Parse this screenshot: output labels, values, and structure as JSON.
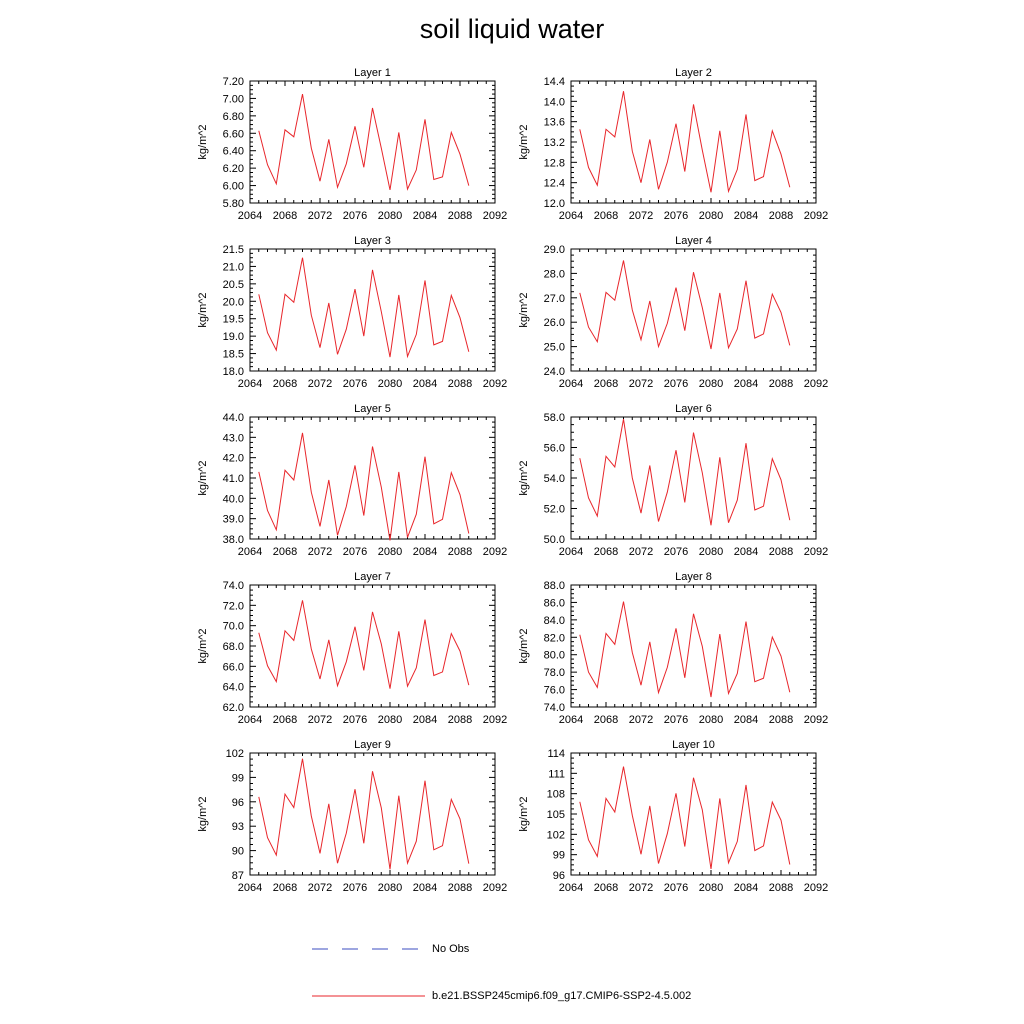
{
  "title": "soil liquid water",
  "legend": {
    "obs_label": "No Obs",
    "obs_color": "#3b4cc0",
    "model_label": "b.e21.BSSP245cmip6.f09_g17.CMIP6-SSP2-4.5.002",
    "model_color": "#e8262b"
  },
  "chart_data": [
    {
      "type": "line",
      "title": "Layer 1",
      "ylabel": "kg/m^2",
      "xlim": [
        2064,
        2092
      ],
      "x_ticks": [
        "2064",
        "2068",
        "2072",
        "2076",
        "2080",
        "2084",
        "2088",
        "2092"
      ],
      "ylim": [
        5.8,
        7.2
      ],
      "y_ticks": [
        "5.80",
        "6.00",
        "6.20",
        "6.40",
        "6.60",
        "6.80",
        "7.00",
        "7.20"
      ],
      "series": [
        {
          "color": "#e8262b",
          "x": [
            2065,
            2066,
            2067,
            2068,
            2069,
            2070,
            2071,
            2072,
            2073,
            2074,
            2075,
            2076,
            2077,
            2078,
            2079,
            2080,
            2081,
            2082,
            2083,
            2084,
            2085,
            2086,
            2087,
            2088,
            2089
          ],
          "y": [
            6.63,
            6.24,
            6.02,
            6.64,
            6.56,
            7.05,
            6.43,
            6.05,
            6.53,
            5.98,
            6.25,
            6.68,
            6.21,
            6.89,
            6.43,
            5.95,
            6.61,
            5.96,
            6.18,
            6.76,
            6.07,
            6.1,
            6.61,
            6.36,
            6.0
          ]
        }
      ]
    },
    {
      "type": "line",
      "title": "Layer 2",
      "ylabel": "kg/m^2",
      "xlim": [
        2064,
        2092
      ],
      "x_ticks": [
        "2064",
        "2068",
        "2072",
        "2076",
        "2080",
        "2084",
        "2088",
        "2092"
      ],
      "ylim": [
        12.0,
        14.4
      ],
      "y_ticks": [
        "12.0",
        "12.4",
        "12.8",
        "13.2",
        "13.6",
        "14.0",
        "14.4"
      ],
      "series": [
        {
          "color": "#e8262b",
          "x": [
            2065,
            2066,
            2067,
            2068,
            2069,
            2070,
            2071,
            2072,
            2073,
            2074,
            2075,
            2076,
            2077,
            2078,
            2079,
            2080,
            2081,
            2082,
            2083,
            2084,
            2085,
            2086,
            2087,
            2088,
            2089
          ],
          "y": [
            13.45,
            12.7,
            12.35,
            13.45,
            13.3,
            14.2,
            13.02,
            12.4,
            13.25,
            12.27,
            12.8,
            13.56,
            12.62,
            13.94,
            13.04,
            12.21,
            13.42,
            12.23,
            12.66,
            13.74,
            12.44,
            12.52,
            13.42,
            12.96,
            12.31
          ]
        }
      ]
    },
    {
      "type": "line",
      "title": "Layer 3",
      "ylabel": "kg/m^2",
      "xlim": [
        2064,
        2092
      ],
      "x_ticks": [
        "2064",
        "2068",
        "2072",
        "2076",
        "2080",
        "2084",
        "2088",
        "2092"
      ],
      "ylim": [
        18.0,
        21.5
      ],
      "y_ticks": [
        "18.0",
        "18.5",
        "19.0",
        "19.5",
        "20.0",
        "20.5",
        "21.0",
        "21.5"
      ],
      "series": [
        {
          "color": "#e8262b",
          "x": [
            2065,
            2066,
            2067,
            2068,
            2069,
            2070,
            2071,
            2072,
            2073,
            2074,
            2075,
            2076,
            2077,
            2078,
            2079,
            2080,
            2081,
            2082,
            2083,
            2084,
            2085,
            2086,
            2087,
            2088,
            2089
          ],
          "y": [
            20.2,
            19.1,
            18.6,
            20.2,
            19.97,
            21.25,
            19.6,
            18.67,
            19.95,
            18.48,
            19.2,
            20.35,
            19.0,
            20.9,
            19.7,
            18.4,
            20.18,
            18.42,
            19.05,
            20.6,
            18.75,
            18.85,
            20.17,
            19.53,
            18.55
          ]
        }
      ]
    },
    {
      "type": "line",
      "title": "Layer 4",
      "ylabel": "kg/m^2",
      "xlim": [
        2064,
        2092
      ],
      "x_ticks": [
        "2064",
        "2068",
        "2072",
        "2076",
        "2080",
        "2084",
        "2088",
        "2092"
      ],
      "ylim": [
        24.0,
        29.0
      ],
      "y_ticks": [
        "24.0",
        "25.0",
        "26.0",
        "27.0",
        "28.0",
        "29.0"
      ],
      "series": [
        {
          "color": "#e8262b",
          "x": [
            2065,
            2066,
            2067,
            2068,
            2069,
            2070,
            2071,
            2072,
            2073,
            2074,
            2075,
            2076,
            2077,
            2078,
            2079,
            2080,
            2081,
            2082,
            2083,
            2084,
            2085,
            2086,
            2087,
            2088,
            2089
          ],
          "y": [
            27.2,
            25.8,
            25.2,
            27.22,
            26.9,
            28.53,
            26.5,
            25.28,
            26.87,
            25.0,
            25.95,
            27.42,
            25.65,
            28.05,
            26.6,
            24.9,
            27.2,
            24.95,
            25.72,
            27.7,
            25.35,
            25.52,
            27.15,
            26.4,
            25.05
          ]
        }
      ]
    },
    {
      "type": "line",
      "title": "Layer 5",
      "ylabel": "kg/m^2",
      "xlim": [
        2064,
        2092
      ],
      "x_ticks": [
        "2064",
        "2068",
        "2072",
        "2076",
        "2080",
        "2084",
        "2088",
        "2092"
      ],
      "ylim": [
        38.0,
        44.0
      ],
      "y_ticks": [
        "38.0",
        "39.0",
        "40.0",
        "41.0",
        "42.0",
        "43.0",
        "44.0"
      ],
      "series": [
        {
          "color": "#e8262b",
          "x": [
            2065,
            2066,
            2067,
            2068,
            2069,
            2070,
            2071,
            2072,
            2073,
            2074,
            2075,
            2076,
            2077,
            2078,
            2079,
            2080,
            2081,
            2082,
            2083,
            2084,
            2085,
            2086,
            2087,
            2088,
            2089
          ],
          "y": [
            41.3,
            39.4,
            38.45,
            41.38,
            40.9,
            43.22,
            40.3,
            38.62,
            40.9,
            38.18,
            39.6,
            41.62,
            39.15,
            42.55,
            40.55,
            37.93,
            41.3,
            38.08,
            39.22,
            42.05,
            38.75,
            38.97,
            41.26,
            40.18,
            38.27
          ]
        }
      ]
    },
    {
      "type": "line",
      "title": "Layer 6",
      "ylabel": "kg/m^2",
      "xlim": [
        2064,
        2092
      ],
      "x_ticks": [
        "2064",
        "2068",
        "2072",
        "2076",
        "2080",
        "2084",
        "2088",
        "2092"
      ],
      "ylim": [
        50.0,
        58.0
      ],
      "y_ticks": [
        "50.0",
        "52.0",
        "54.0",
        "56.0",
        "58.0"
      ],
      "series": [
        {
          "color": "#e8262b",
          "x": [
            2065,
            2066,
            2067,
            2068,
            2069,
            2070,
            2071,
            2072,
            2073,
            2074,
            2075,
            2076,
            2077,
            2078,
            2079,
            2080,
            2081,
            2082,
            2083,
            2084,
            2085,
            2086,
            2087,
            2088,
            2089
          ],
          "y": [
            55.3,
            52.7,
            51.5,
            55.42,
            54.72,
            57.86,
            54.0,
            51.7,
            54.82,
            51.15,
            53.07,
            55.82,
            52.4,
            56.98,
            54.34,
            50.9,
            55.36,
            51.07,
            52.55,
            56.28,
            51.9,
            52.15,
            55.26,
            53.88,
            51.23
          ]
        }
      ]
    },
    {
      "type": "line",
      "title": "Layer 7",
      "ylabel": "kg/m^2",
      "xlim": [
        2064,
        2092
      ],
      "x_ticks": [
        "2064",
        "2068",
        "2072",
        "2076",
        "2080",
        "2084",
        "2088",
        "2092"
      ],
      "ylim": [
        62.0,
        74.0
      ],
      "y_ticks": [
        "62.0",
        "64.0",
        "66.0",
        "68.0",
        "70.0",
        "72.0",
        "74.0"
      ],
      "series": [
        {
          "color": "#e8262b",
          "x": [
            2065,
            2066,
            2067,
            2068,
            2069,
            2070,
            2071,
            2072,
            2073,
            2074,
            2075,
            2076,
            2077,
            2078,
            2079,
            2080,
            2081,
            2082,
            2083,
            2084,
            2085,
            2086,
            2087,
            2088,
            2089
          ],
          "y": [
            69.3,
            66.05,
            64.5,
            69.5,
            68.55,
            72.5,
            67.7,
            64.75,
            68.6,
            64.1,
            66.45,
            69.9,
            65.6,
            71.35,
            68.2,
            63.8,
            69.45,
            64.05,
            65.85,
            70.6,
            65.1,
            65.45,
            69.22,
            67.5,
            64.15
          ]
        }
      ]
    },
    {
      "type": "line",
      "title": "Layer 8",
      "ylabel": "kg/m^2",
      "xlim": [
        2064,
        2092
      ],
      "x_ticks": [
        "2064",
        "2068",
        "2072",
        "2076",
        "2080",
        "2084",
        "2088",
        "2092"
      ],
      "ylim": [
        74.0,
        88.0
      ],
      "y_ticks": [
        "74.0",
        "76.0",
        "78.0",
        "80.0",
        "82.0",
        "84.0",
        "86.0",
        "88.0"
      ],
      "series": [
        {
          "color": "#e8262b",
          "x": [
            2065,
            2066,
            2067,
            2068,
            2069,
            2070,
            2071,
            2072,
            2073,
            2074,
            2075,
            2076,
            2077,
            2078,
            2079,
            2080,
            2081,
            2082,
            2083,
            2084,
            2085,
            2086,
            2087,
            2088,
            2089
          ],
          "y": [
            82.3,
            78.0,
            76.25,
            82.45,
            81.2,
            86.1,
            80.25,
            76.5,
            81.48,
            75.65,
            78.55,
            83.02,
            77.35,
            84.7,
            80.95,
            75.15,
            82.37,
            75.55,
            77.85,
            83.8,
            76.9,
            77.3,
            82.02,
            79.85,
            75.7
          ]
        }
      ]
    },
    {
      "type": "line",
      "title": "Layer 9",
      "ylabel": "kg/m^2",
      "xlim": [
        2064,
        2092
      ],
      "x_ticks": [
        "2064",
        "2068",
        "2072",
        "2076",
        "2080",
        "2084",
        "2088",
        "2092"
      ],
      "ylim": [
        87,
        102
      ],
      "y_ticks": [
        "87",
        "90",
        "93",
        "96",
        "99",
        "102"
      ],
      "series": [
        {
          "color": "#e8262b",
          "x": [
            2065,
            2066,
            2067,
            2068,
            2069,
            2070,
            2071,
            2072,
            2073,
            2074,
            2075,
            2076,
            2077,
            2078,
            2079,
            2080,
            2081,
            2082,
            2083,
            2084,
            2085,
            2086,
            2087,
            2088,
            2089
          ],
          "y": [
            96.6,
            91.6,
            89.45,
            96.95,
            95.3,
            101.3,
            94.25,
            89.65,
            95.75,
            88.45,
            92.15,
            97.55,
            90.9,
            99.75,
            95.25,
            87.7,
            96.75,
            88.45,
            91.15,
            98.6,
            90.1,
            90.6,
            96.3,
            93.9,
            88.4
          ]
        }
      ]
    },
    {
      "type": "line",
      "title": "Layer 10",
      "ylabel": "kg/m^2",
      "xlim": [
        2064,
        2092
      ],
      "x_ticks": [
        "2064",
        "2068",
        "2072",
        "2076",
        "2080",
        "2084",
        "2088",
        "2092"
      ],
      "ylim": [
        96,
        114
      ],
      "y_ticks": [
        "96",
        "99",
        "102",
        "105",
        "108",
        "111",
        "114"
      ],
      "series": [
        {
          "color": "#e8262b",
          "x": [
            2065,
            2066,
            2067,
            2068,
            2069,
            2070,
            2071,
            2072,
            2073,
            2074,
            2075,
            2076,
            2077,
            2078,
            2079,
            2080,
            2081,
            2082,
            2083,
            2084,
            2085,
            2086,
            2087,
            2088,
            2089
          ],
          "y": [
            106.8,
            101.2,
            98.75,
            107.3,
            105.3,
            112.0,
            104.8,
            99.05,
            106.2,
            97.7,
            102.1,
            108.05,
            100.2,
            110.35,
            105.6,
            96.9,
            107.3,
            97.8,
            100.95,
            109.3,
            99.6,
            100.3,
            106.75,
            104.1,
            97.55
          ]
        }
      ]
    }
  ]
}
